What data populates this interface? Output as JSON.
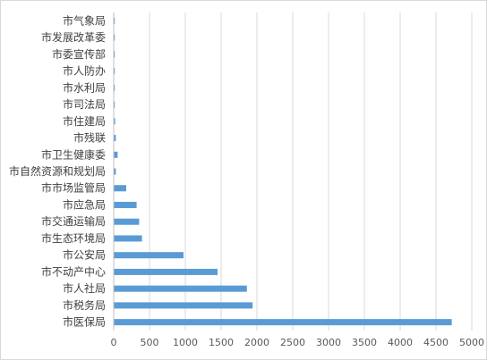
{
  "chart_data": {
    "type": "bar",
    "orientation": "horizontal",
    "categories": [
      "市医保局",
      "市税务局",
      "市人社局",
      "市不动产中心",
      "市公安局",
      "市生态环境局",
      "市交通运输局",
      "市应急局",
      "市市场监管局",
      "市自然资源和规划局",
      "市卫生健康委",
      "市残联",
      "市住建局",
      "市司法局",
      "市水利局",
      "市人防办",
      "市委宣传部",
      "市发展改革委",
      "市气象局"
    ],
    "values": [
      4720,
      1940,
      1860,
      1450,
      975,
      395,
      355,
      320,
      175,
      30,
      55,
      30,
      20,
      15,
      15,
      15,
      15,
      15,
      15
    ],
    "xlim": [
      0,
      5000
    ],
    "xticks": [
      "0",
      "500",
      "1000",
      "1500",
      "2000",
      "2500",
      "3000",
      "3500",
      "4000",
      "4500",
      "5000"
    ],
    "grid": true,
    "legend": "none",
    "bar_color": "#5b9bd5",
    "grid_color": "#d9d9d9"
  }
}
